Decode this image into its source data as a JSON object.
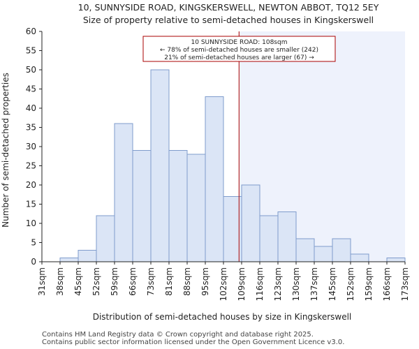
{
  "chart_data": {
    "type": "bar",
    "title": "10, SUNNYSIDE ROAD, KINGSKERSWELL, NEWTON ABBOT, TQ12 5EY",
    "subtitle": "Size of property relative to semi-detached houses in Kingskerswell",
    "xlabel": "Distribution of semi-detached houses by size in Kingskerswell",
    "ylabel": "Number of semi-detached properties",
    "ylim": [
      0,
      60
    ],
    "yticks": [
      "0",
      "5",
      "10",
      "15",
      "20",
      "25",
      "30",
      "35",
      "40",
      "45",
      "50",
      "55",
      "60"
    ],
    "bin_edges": [
      31,
      38,
      45,
      52,
      59,
      66,
      73,
      81,
      88,
      95,
      102,
      109,
      116,
      123,
      130,
      137,
      145,
      152,
      159,
      166,
      173
    ],
    "tick_labels": [
      "31sqm",
      "38sqm",
      "45sqm",
      "52sqm",
      "59sqm",
      "66sqm",
      "73sqm",
      "81sqm",
      "88sqm",
      "95sqm",
      "102sqm",
      "109sqm",
      "116sqm",
      "123sqm",
      "130sqm",
      "137sqm",
      "145sqm",
      "152sqm",
      "159sqm",
      "166sqm",
      "173sqm"
    ],
    "values": [
      0,
      1,
      3,
      12,
      36,
      29,
      50,
      29,
      28,
      43,
      17,
      20,
      12,
      13,
      6,
      4,
      6,
      2,
      0,
      1
    ],
    "property_size": 108,
    "annotation": [
      "10 SUNNYSIDE ROAD: 108sqm",
      "← 78% of semi-detached houses are smaller (242)",
      "21% of semi-detached houses are larger (67) →"
    ],
    "colors": {
      "bar_fill": "#dbe5f6",
      "bar_edge": "#7f9ccc",
      "highlight": "#eef2fc",
      "marker": "#aa0000"
    }
  },
  "footer": {
    "line1": "Contains HM Land Registry data © Crown copyright and database right 2025.",
    "line2": "Contains public sector information licensed under the Open Government Licence v3.0."
  }
}
